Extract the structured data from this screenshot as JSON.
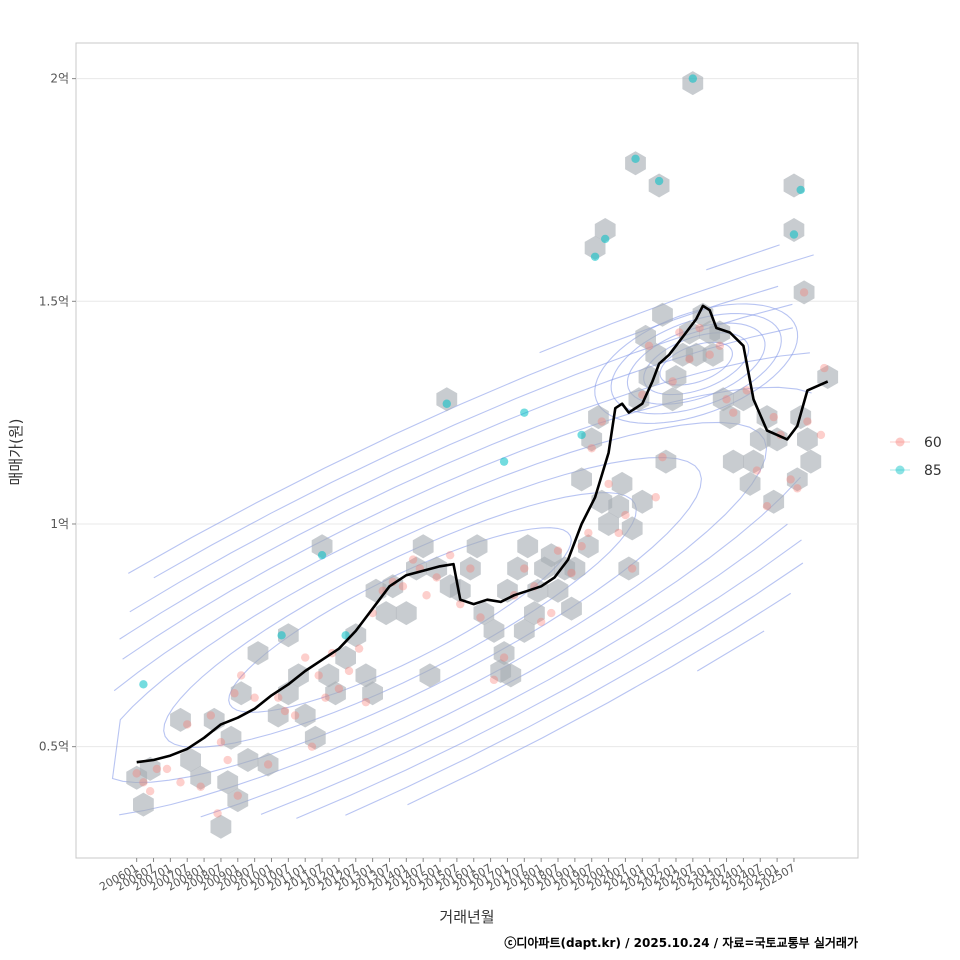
{
  "chart_data": {
    "type": "scatter",
    "xlabel": "거래년월",
    "ylabel": "매매가(원)",
    "caption": "ⓒ디아파트(dapt.kr) / 2025.10.24 / 자료=국토교통부 실거래가",
    "x_ticks": [
      "200601",
      "200607",
      "200701",
      "200707",
      "200801",
      "200807",
      "200901",
      "200907",
      "201001",
      "201007",
      "201101",
      "201107",
      "201201",
      "201207",
      "201301",
      "201307",
      "201401",
      "201407",
      "201501",
      "201507",
      "201601",
      "201607",
      "201701",
      "201707",
      "201801",
      "201807",
      "201901",
      "201907",
      "202001",
      "202007",
      "202101",
      "202107",
      "202201",
      "202207",
      "202301",
      "202307",
      "202401",
      "202407",
      "202501",
      "202507"
    ],
    "y_ticks": [
      {
        "value": 0.5,
        "label": "0.5억"
      },
      {
        "value": 1.0,
        "label": "1억"
      },
      {
        "value": 1.5,
        "label": "1.5억"
      },
      {
        "value": 2.0,
        "label": "2억"
      }
    ],
    "x_range": [
      2004.2,
      2027.4
    ],
    "y_range": [
      0.25,
      2.08
    ],
    "legend": {
      "position": "right",
      "items": [
        {
          "label": "60",
          "color": "#F8766D"
        },
        {
          "label": "85",
          "color": "#00BFC4"
        }
      ]
    },
    "colors": {
      "hex": "#A7ADB3",
      "contour": "#7E94E8",
      "trend": "#000000",
      "grid": "#E8E8E8",
      "border": "#C8C8C8"
    },
    "series": [
      {
        "name": "60",
        "color": "#F8766D",
        "points": [
          [
            2006.0,
            0.44
          ],
          [
            2006.2,
            0.42
          ],
          [
            2006.4,
            0.4
          ],
          [
            2006.6,
            0.45
          ],
          [
            2006.9,
            0.45
          ],
          [
            2007.3,
            0.42
          ],
          [
            2007.5,
            0.55
          ],
          [
            2007.9,
            0.41
          ],
          [
            2008.2,
            0.57
          ],
          [
            2008.4,
            0.35
          ],
          [
            2008.5,
            0.51
          ],
          [
            2008.7,
            0.47
          ],
          [
            2008.9,
            0.62
          ],
          [
            2009.0,
            0.39
          ],
          [
            2009.1,
            0.66
          ],
          [
            2009.5,
            0.61
          ],
          [
            2009.9,
            0.46
          ],
          [
            2010.2,
            0.61
          ],
          [
            2010.4,
            0.58
          ],
          [
            2010.7,
            0.57
          ],
          [
            2011.0,
            0.7
          ],
          [
            2011.2,
            0.5
          ],
          [
            2011.4,
            0.66
          ],
          [
            2011.6,
            0.61
          ],
          [
            2011.8,
            0.71
          ],
          [
            2012.0,
            0.63
          ],
          [
            2012.3,
            0.67
          ],
          [
            2012.6,
            0.72
          ],
          [
            2012.8,
            0.6
          ],
          [
            2013.0,
            0.8
          ],
          [
            2013.3,
            0.85
          ],
          [
            2013.6,
            0.87
          ],
          [
            2013.9,
            0.86
          ],
          [
            2014.2,
            0.92
          ],
          [
            2014.4,
            0.9
          ],
          [
            2014.6,
            0.84
          ],
          [
            2014.9,
            0.88
          ],
          [
            2015.3,
            0.93
          ],
          [
            2015.6,
            0.82
          ],
          [
            2015.9,
            0.9
          ],
          [
            2016.2,
            0.79
          ],
          [
            2016.6,
            0.65
          ],
          [
            2016.9,
            0.7
          ],
          [
            2017.2,
            0.84
          ],
          [
            2017.5,
            0.9
          ],
          [
            2017.8,
            0.86
          ],
          [
            2018.0,
            0.78
          ],
          [
            2018.3,
            0.8
          ],
          [
            2018.5,
            0.94
          ],
          [
            2018.9,
            0.89
          ],
          [
            2019.2,
            0.95
          ],
          [
            2019.4,
            0.98
          ],
          [
            2019.5,
            1.17
          ],
          [
            2019.8,
            1.23
          ],
          [
            2020.0,
            1.09
          ],
          [
            2020.3,
            0.98
          ],
          [
            2020.5,
            1.02
          ],
          [
            2020.7,
            0.9
          ],
          [
            2021.0,
            1.29
          ],
          [
            2021.2,
            1.4
          ],
          [
            2021.4,
            1.06
          ],
          [
            2021.6,
            1.15
          ],
          [
            2021.9,
            1.32
          ],
          [
            2022.1,
            1.43
          ],
          [
            2022.4,
            1.37
          ],
          [
            2022.7,
            1.44
          ],
          [
            2023.0,
            1.38
          ],
          [
            2023.3,
            1.4
          ],
          [
            2023.5,
            1.28
          ],
          [
            2023.7,
            1.25
          ],
          [
            2024.1,
            1.3
          ],
          [
            2024.4,
            1.12
          ],
          [
            2024.7,
            1.04
          ],
          [
            2024.9,
            1.24
          ],
          [
            2025.1,
            1.2
          ],
          [
            2025.4,
            1.1
          ],
          [
            2025.6,
            1.08
          ],
          [
            2025.8,
            1.52
          ],
          [
            2025.9,
            1.23
          ],
          [
            2026.3,
            1.2
          ],
          [
            2026.4,
            1.35
          ]
        ]
      },
      {
        "name": "85",
        "color": "#00BFC4",
        "points": [
          [
            2006.2,
            0.64
          ],
          [
            2010.3,
            0.75
          ],
          [
            2011.5,
            0.93
          ],
          [
            2012.2,
            0.75
          ],
          [
            2015.2,
            1.27
          ],
          [
            2016.9,
            1.14
          ],
          [
            2017.5,
            1.25
          ],
          [
            2019.2,
            1.2
          ],
          [
            2019.6,
            1.6
          ],
          [
            2019.9,
            1.64
          ],
          [
            2020.8,
            1.82
          ],
          [
            2021.5,
            1.77
          ],
          [
            2022.5,
            2.0
          ],
          [
            2025.5,
            1.65
          ],
          [
            2025.7,
            1.75
          ]
        ]
      }
    ],
    "trend": [
      [
        2006.0,
        0.465
      ],
      [
        2006.5,
        0.47
      ],
      [
        2007.0,
        0.48
      ],
      [
        2007.5,
        0.495
      ],
      [
        2008.0,
        0.52
      ],
      [
        2008.5,
        0.55
      ],
      [
        2009.0,
        0.565
      ],
      [
        2009.5,
        0.585
      ],
      [
        2010.0,
        0.615
      ],
      [
        2010.5,
        0.64
      ],
      [
        2011.0,
        0.67
      ],
      [
        2011.5,
        0.695
      ],
      [
        2012.0,
        0.72
      ],
      [
        2012.5,
        0.76
      ],
      [
        2013.0,
        0.81
      ],
      [
        2013.5,
        0.86
      ],
      [
        2014.0,
        0.885
      ],
      [
        2014.5,
        0.895
      ],
      [
        2015.0,
        0.905
      ],
      [
        2015.4,
        0.91
      ],
      [
        2015.6,
        0.83
      ],
      [
        2016.0,
        0.82
      ],
      [
        2016.4,
        0.83
      ],
      [
        2016.8,
        0.825
      ],
      [
        2017.2,
        0.84
      ],
      [
        2017.6,
        0.85
      ],
      [
        2018.0,
        0.86
      ],
      [
        2018.4,
        0.88
      ],
      [
        2018.8,
        0.92
      ],
      [
        2019.2,
        1.0
      ],
      [
        2019.6,
        1.06
      ],
      [
        2020.0,
        1.16
      ],
      [
        2020.2,
        1.26
      ],
      [
        2020.4,
        1.27
      ],
      [
        2020.6,
        1.25
      ],
      [
        2021.0,
        1.27
      ],
      [
        2021.3,
        1.32
      ],
      [
        2021.5,
        1.36
      ],
      [
        2021.8,
        1.38
      ],
      [
        2022.0,
        1.4
      ],
      [
        2022.3,
        1.43
      ],
      [
        2022.6,
        1.46
      ],
      [
        2022.8,
        1.49
      ],
      [
        2023.0,
        1.48
      ],
      [
        2023.2,
        1.44
      ],
      [
        2023.6,
        1.43
      ],
      [
        2024.0,
        1.4
      ],
      [
        2024.3,
        1.28
      ],
      [
        2024.7,
        1.21
      ],
      [
        2025.0,
        1.2
      ],
      [
        2025.3,
        1.19
      ],
      [
        2025.6,
        1.22
      ],
      [
        2025.9,
        1.3
      ],
      [
        2026.2,
        1.31
      ],
      [
        2026.5,
        1.32
      ]
    ],
    "hexbins": [
      [
        2006.0,
        0.43
      ],
      [
        2006.2,
        0.37
      ],
      [
        2006.4,
        0.45
      ],
      [
        2007.3,
        0.56
      ],
      [
        2007.6,
        0.47
      ],
      [
        2007.9,
        0.43
      ],
      [
        2008.3,
        0.56
      ],
      [
        2008.5,
        0.32
      ],
      [
        2008.7,
        0.42
      ],
      [
        2008.8,
        0.52
      ],
      [
        2009.0,
        0.38
      ],
      [
        2009.1,
        0.62
      ],
      [
        2009.3,
        0.47
      ],
      [
        2009.6,
        0.71
      ],
      [
        2009.9,
        0.46
      ],
      [
        2010.2,
        0.57
      ],
      [
        2010.5,
        0.62
      ],
      [
        2010.5,
        0.75
      ],
      [
        2010.8,
        0.66
      ],
      [
        2011.0,
        0.57
      ],
      [
        2011.3,
        0.52
      ],
      [
        2011.5,
        0.95
      ],
      [
        2011.7,
        0.66
      ],
      [
        2011.9,
        0.62
      ],
      [
        2012.2,
        0.7
      ],
      [
        2012.5,
        0.75
      ],
      [
        2012.8,
        0.66
      ],
      [
        2013.0,
        0.62
      ],
      [
        2013.1,
        0.85
      ],
      [
        2013.4,
        0.8
      ],
      [
        2013.6,
        0.86
      ],
      [
        2014.0,
        0.8
      ],
      [
        2014.3,
        0.9
      ],
      [
        2014.5,
        0.95
      ],
      [
        2014.7,
        0.66
      ],
      [
        2014.9,
        0.9
      ],
      [
        2015.2,
        1.28
      ],
      [
        2015.3,
        0.86
      ],
      [
        2015.6,
        0.85
      ],
      [
        2015.9,
        0.9
      ],
      [
        2016.1,
        0.95
      ],
      [
        2016.3,
        0.8
      ],
      [
        2016.6,
        0.76
      ],
      [
        2016.8,
        0.67
      ],
      [
        2016.9,
        0.71
      ],
      [
        2017.0,
        0.85
      ],
      [
        2017.1,
        0.66
      ],
      [
        2017.3,
        0.9
      ],
      [
        2017.5,
        0.76
      ],
      [
        2017.6,
        0.95
      ],
      [
        2017.8,
        0.8
      ],
      [
        2017.9,
        0.85
      ],
      [
        2018.1,
        0.9
      ],
      [
        2018.3,
        0.93
      ],
      [
        2018.5,
        0.85
      ],
      [
        2018.7,
        0.9
      ],
      [
        2018.9,
        0.81
      ],
      [
        2019.0,
        0.9
      ],
      [
        2019.2,
        1.1
      ],
      [
        2019.4,
        0.95
      ],
      [
        2019.5,
        1.19
      ],
      [
        2019.6,
        1.62
      ],
      [
        2019.7,
        1.24
      ],
      [
        2019.8,
        1.05
      ],
      [
        2019.9,
        1.66
      ],
      [
        2020.0,
        1.0
      ],
      [
        2020.3,
        1.04
      ],
      [
        2020.4,
        1.09
      ],
      [
        2020.6,
        0.9
      ],
      [
        2020.7,
        0.99
      ],
      [
        2020.8,
        1.81
      ],
      [
        2020.9,
        1.28
      ],
      [
        2021.0,
        1.05
      ],
      [
        2021.1,
        1.42
      ],
      [
        2021.2,
        1.33
      ],
      [
        2021.4,
        1.38
      ],
      [
        2021.5,
        1.76
      ],
      [
        2021.6,
        1.47
      ],
      [
        2021.7,
        1.14
      ],
      [
        2021.9,
        1.28
      ],
      [
        2022.0,
        1.33
      ],
      [
        2022.2,
        1.38
      ],
      [
        2022.4,
        1.43
      ],
      [
        2022.5,
        1.99
      ],
      [
        2022.6,
        1.38
      ],
      [
        2022.8,
        1.47
      ],
      [
        2023.0,
        1.43
      ],
      [
        2023.1,
        1.38
      ],
      [
        2023.3,
        1.43
      ],
      [
        2023.4,
        1.28
      ],
      [
        2023.6,
        1.24
      ],
      [
        2023.7,
        1.14
      ],
      [
        2024.0,
        1.28
      ],
      [
        2024.2,
        1.09
      ],
      [
        2024.3,
        1.14
      ],
      [
        2024.5,
        1.19
      ],
      [
        2024.7,
        1.24
      ],
      [
        2024.9,
        1.05
      ],
      [
        2025.0,
        1.19
      ],
      [
        2025.5,
        1.76
      ],
      [
        2025.5,
        1.66
      ],
      [
        2025.6,
        1.1
      ],
      [
        2025.7,
        1.24
      ],
      [
        2025.8,
        1.52
      ],
      [
        2025.9,
        1.19
      ],
      [
        2026.0,
        1.14
      ],
      [
        2026.5,
        1.33
      ]
    ]
  }
}
